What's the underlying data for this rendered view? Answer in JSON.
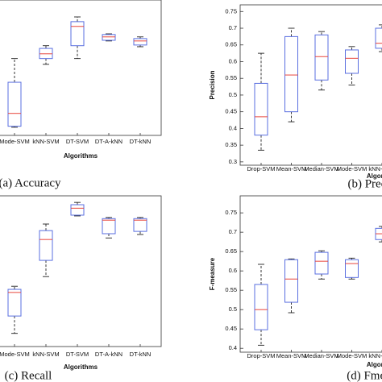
{
  "chart_data": [
    {
      "type": "box",
      "title": "(a) Accuracy",
      "xlabel": "Algorithms",
      "categories": [
        "Mode-SVM",
        "kNN-SVM",
        "DT-SVM",
        "DT-A-kNN",
        "DT-kNN"
      ],
      "boxes": [
        {
          "whislo": 0.407,
          "q1": 0.41,
          "med": 0.448,
          "q3": 0.54,
          "whishi": 0.61
        },
        {
          "whislo": 0.593,
          "q1": 0.61,
          "med": 0.624,
          "q3": 0.64,
          "whishi": 0.648
        },
        {
          "whislo": 0.61,
          "q1": 0.648,
          "med": 0.705,
          "q3": 0.719,
          "whishi": 0.733
        },
        {
          "whislo": 0.662,
          "q1": 0.664,
          "med": 0.674,
          "q3": 0.681,
          "whishi": 0.683
        },
        {
          "whislo": 0.645,
          "q1": 0.65,
          "med": 0.662,
          "q3": 0.669,
          "whishi": 0.674
        }
      ],
      "ylim": [
        0.383,
        0.783
      ],
      "box_color": "#5a6fe0",
      "median_color": "#e8453c",
      "whisker_color": "#222222"
    },
    {
      "type": "box",
      "title": "(b) Precision",
      "xlabel": "Algorithms",
      "ylabel": "Precision",
      "categories": [
        "Drop-SVM",
        "Mean-SVM",
        "Median-SVM",
        "Mode-SVM",
        "kNN-SVM"
      ],
      "boxes": [
        {
          "whislo": 0.335,
          "q1": 0.38,
          "med": 0.435,
          "q3": 0.535,
          "whishi": 0.625
        },
        {
          "whislo": 0.42,
          "q1": 0.45,
          "med": 0.56,
          "q3": 0.675,
          "whishi": 0.7
        },
        {
          "whislo": 0.515,
          "q1": 0.545,
          "med": 0.615,
          "q3": 0.68,
          "whishi": 0.69
        },
        {
          "whislo": 0.53,
          "q1": 0.565,
          "med": 0.61,
          "q3": 0.635,
          "whishi": 0.645
        },
        {
          "whislo": 0.63,
          "q1": 0.64,
          "med": 0.655,
          "q3": 0.7,
          "whishi": 0.71
        }
      ],
      "ylim": [
        0.29,
        0.77
      ],
      "yticks": [
        0.3,
        0.35,
        0.4,
        0.45,
        0.5,
        0.55,
        0.6,
        0.65,
        0.7,
        0.75
      ],
      "box_color": "#5a6fe0",
      "median_color": "#e8453c",
      "whisker_color": "#222222"
    },
    {
      "type": "box",
      "title": "(c) Recall",
      "xlabel": "Algorithms",
      "categories": [
        "Mode-SVM",
        "kNN-SVM",
        "DT-SVM",
        "DT-A-kNN",
        "DT-kNN"
      ],
      "boxes": [
        {
          "whislo": 0.438,
          "q1": 0.483,
          "med": 0.544,
          "q3": 0.552,
          "whishi": 0.56
        },
        {
          "whislo": 0.585,
          "q1": 0.627,
          "med": 0.681,
          "q3": 0.704,
          "whishi": 0.721
        },
        {
          "whislo": 0.742,
          "q1": 0.744,
          "med": 0.762,
          "q3": 0.771,
          "whishi": 0.777
        },
        {
          "whislo": 0.685,
          "q1": 0.696,
          "med": 0.731,
          "q3": 0.735,
          "whishi": 0.738
        },
        {
          "whislo": 0.694,
          "q1": 0.702,
          "med": 0.731,
          "q3": 0.735,
          "whishi": 0.738
        }
      ],
      "ylim": [
        0.404,
        0.794
      ],
      "box_color": "#5a6fe0",
      "median_color": "#e8453c",
      "whisker_color": "#222222"
    },
    {
      "type": "box",
      "title": "(d) Fmeasure",
      "xlabel": "Algorithms",
      "ylabel": "F-measure",
      "categories": [
        "Drop-SVM",
        "Mean-SVM",
        "Median-SVM",
        "Mode-SVM",
        "kNN-SVM"
      ],
      "boxes": [
        {
          "whislo": 0.408,
          "q1": 0.448,
          "med": 0.5,
          "q3": 0.565,
          "whishi": 0.617
        },
        {
          "whislo": 0.492,
          "q1": 0.519,
          "med": 0.579,
          "q3": 0.629,
          "whishi": 0.631
        },
        {
          "whislo": 0.579,
          "q1": 0.592,
          "med": 0.625,
          "q3": 0.648,
          "whishi": 0.652
        },
        {
          "whislo": 0.579,
          "q1": 0.583,
          "med": 0.619,
          "q3": 0.629,
          "whishi": 0.633
        },
        {
          "whislo": 0.675,
          "q1": 0.681,
          "med": 0.696,
          "q3": 0.71,
          "whishi": 0.715
        }
      ],
      "ylim": [
        0.39,
        0.794
      ],
      "yticks": [
        0.4,
        0.45,
        0.5,
        0.55,
        0.6,
        0.65,
        0.7,
        0.75
      ],
      "box_color": "#5a6fe0",
      "median_color": "#e8453c",
      "whisker_color": "#222222"
    }
  ]
}
